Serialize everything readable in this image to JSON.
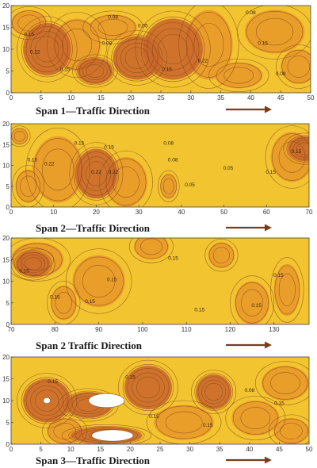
{
  "figure": {
    "colors": {
      "background_fill": "#f2c430",
      "mid_fill": "#e99a2a",
      "dark_fill": "#c9652c",
      "contour_line": "#8a4a1c",
      "axis": "#444444",
      "arrow": "#7a3d1a",
      "void": "#ffffff"
    }
  },
  "chart_data": [
    {
      "type": "heatmap",
      "name": "span-1",
      "caption": "Span 1—Traffic Direction",
      "x_ticks": [
        "0",
        "5",
        "10",
        "15",
        "20",
        "25",
        "30",
        "35",
        "40",
        "45",
        "50"
      ],
      "y_ticks": [
        "0",
        "5",
        "10",
        "15",
        "20"
      ],
      "xlim": [
        0,
        50
      ],
      "ylim": [
        0,
        20
      ],
      "contour_labels": [
        {
          "text": "0.15",
          "x": 3,
          "y": 13
        },
        {
          "text": "0.08",
          "x": 17,
          "y": 17
        },
        {
          "text": "0.05",
          "x": 22,
          "y": 15
        },
        {
          "text": "0.22",
          "x": 4,
          "y": 9
        },
        {
          "text": "0.08",
          "x": 16,
          "y": 11
        },
        {
          "text": "0.15",
          "x": 9,
          "y": 5
        },
        {
          "text": "0.15",
          "x": 26,
          "y": 5
        },
        {
          "text": "0.22",
          "x": 32,
          "y": 7
        },
        {
          "text": "0.15",
          "x": 42,
          "y": 11
        },
        {
          "text": "0.08",
          "x": 45,
          "y": 4
        },
        {
          "text": "0.08",
          "x": 40,
          "y": 18
        }
      ],
      "blobs": [
        {
          "level": 2,
          "cx": 6,
          "cy": 10,
          "rx": 4,
          "ry": 6
        },
        {
          "level": 2,
          "cx": 21,
          "cy": 8,
          "rx": 4,
          "ry": 5
        },
        {
          "level": 2,
          "cx": 27,
          "cy": 10,
          "rx": 5,
          "ry": 7
        },
        {
          "level": 2,
          "cx": 14,
          "cy": 5,
          "rx": 3,
          "ry": 3
        },
        {
          "level": 1,
          "cx": 3,
          "cy": 16,
          "rx": 3,
          "ry": 3
        },
        {
          "level": 1,
          "cx": 11,
          "cy": 11,
          "rx": 4,
          "ry": 6
        },
        {
          "level": 1,
          "cx": 33,
          "cy": 11,
          "rx": 4,
          "ry": 8
        },
        {
          "level": 1,
          "cx": 44,
          "cy": 14,
          "rx": 5,
          "ry": 5
        },
        {
          "level": 1,
          "cx": 48,
          "cy": 6,
          "rx": 3,
          "ry": 4
        },
        {
          "level": 1,
          "cx": 38,
          "cy": 4,
          "rx": 4,
          "ry": 3
        },
        {
          "level": 1,
          "cx": 17,
          "cy": 15,
          "rx": 4,
          "ry": 3
        }
      ]
    },
    {
      "type": "heatmap",
      "name": "span-2a",
      "caption": "Span 2—Traffic Direction",
      "x_ticks": [
        "0",
        "10",
        "20",
        "30",
        "40",
        "50",
        "60",
        "70"
      ],
      "y_ticks": [
        "0",
        "5",
        "10",
        "15",
        "20"
      ],
      "xlim": [
        0,
        70
      ],
      "ylim": [
        0,
        20
      ],
      "contour_labels": [
        {
          "text": "0.15",
          "x": 16,
          "y": 15
        },
        {
          "text": "0.15",
          "x": 23,
          "y": 14
        },
        {
          "text": "0.22",
          "x": 9,
          "y": 10
        },
        {
          "text": "0.22",
          "x": 20,
          "y": 8
        },
        {
          "text": "0.22",
          "x": 24,
          "y": 8
        },
        {
          "text": "0.15",
          "x": 5,
          "y": 11
        },
        {
          "text": "0.08",
          "x": 37,
          "y": 15
        },
        {
          "text": "0.08",
          "x": 38,
          "y": 11
        },
        {
          "text": "0.05",
          "x": 51,
          "y": 9
        },
        {
          "text": "0.05",
          "x": 42,
          "y": 5
        },
        {
          "text": "0.15",
          "x": 61,
          "y": 8
        },
        {
          "text": "0.15",
          "x": 67,
          "y": 13
        }
      ],
      "blobs": [
        {
          "level": 1,
          "cx": 11,
          "cy": 9,
          "rx": 6,
          "ry": 8
        },
        {
          "level": 1,
          "cx": 4,
          "cy": 5,
          "rx": 3,
          "ry": 4
        },
        {
          "level": 2,
          "cx": 20,
          "cy": 8,
          "rx": 5,
          "ry": 6
        },
        {
          "level": 1,
          "cx": 27,
          "cy": 6,
          "rx": 5,
          "ry": 6
        },
        {
          "level": 1,
          "cx": 37,
          "cy": 5,
          "rx": 2,
          "ry": 3
        },
        {
          "level": 2,
          "cx": 69,
          "cy": 14,
          "rx": 4,
          "ry": 3
        },
        {
          "level": 1,
          "cx": 66,
          "cy": 12,
          "rx": 5,
          "ry": 6
        },
        {
          "level": 1,
          "cx": 2,
          "cy": 17,
          "rx": 2,
          "ry": 2
        }
      ]
    },
    {
      "type": "heatmap",
      "name": "span-2b",
      "caption": "Span 2    Traffic Direction",
      "x_ticks": [
        "70",
        "80",
        "90",
        "100",
        "110",
        "120",
        "130"
      ],
      "y_ticks": [
        "0",
        "5",
        "10",
        "15",
        "20"
      ],
      "xlim": [
        70,
        138
      ],
      "ylim": [
        0,
        20
      ],
      "contour_labels": [
        {
          "text": "0.15",
          "x": 73,
          "y": 12
        },
        {
          "text": "0.15",
          "x": 80,
          "y": 6
        },
        {
          "text": "0.15",
          "x": 93,
          "y": 10
        },
        {
          "text": "0.15",
          "x": 88,
          "y": 5
        },
        {
          "text": "0.15",
          "x": 107,
          "y": 15
        },
        {
          "text": "0.15",
          "x": 113,
          "y": 3
        },
        {
          "text": "0.15",
          "x": 126,
          "y": 4
        },
        {
          "text": "0.15",
          "x": 131,
          "y": 11
        }
      ],
      "blobs": [
        {
          "level": 2,
          "cx": 75,
          "cy": 14,
          "rx": 4,
          "ry": 3
        },
        {
          "level": 1,
          "cx": 76,
          "cy": 15,
          "rx": 6,
          "ry": 4
        },
        {
          "level": 1,
          "cx": 90,
          "cy": 10,
          "rx": 6,
          "ry": 6
        },
        {
          "level": 1,
          "cx": 82,
          "cy": 5,
          "rx": 3,
          "ry": 4
        },
        {
          "level": 1,
          "cx": 102,
          "cy": 18,
          "rx": 4,
          "ry": 3
        },
        {
          "level": 1,
          "cx": 125,
          "cy": 5,
          "rx": 4,
          "ry": 5
        },
        {
          "level": 1,
          "cx": 133,
          "cy": 8,
          "rx": 3,
          "ry": 6
        },
        {
          "level": 1,
          "cx": 118,
          "cy": 16,
          "rx": 3,
          "ry": 3
        }
      ]
    },
    {
      "type": "heatmap",
      "name": "span-3",
      "caption": "Span 3—Traffic Direction",
      "x_ticks": [
        "0",
        "5",
        "10",
        "15",
        "20",
        "25",
        "30",
        "35",
        "40",
        "45",
        "50"
      ],
      "y_ticks": [
        "0",
        "5",
        "10",
        "15",
        "20"
      ],
      "xlim": [
        0,
        50
      ],
      "ylim": [
        0,
        20
      ],
      "contour_labels": [
        {
          "text": "0.15",
          "x": 7,
          "y": 14
        },
        {
          "text": "0.15",
          "x": 20,
          "y": 15
        },
        {
          "text": "0.15",
          "x": 24,
          "y": 6
        },
        {
          "text": "0.08",
          "x": 40,
          "y": 12
        },
        {
          "text": "0.15",
          "x": 45,
          "y": 9
        },
        {
          "text": "0.15",
          "x": 33,
          "y": 4
        }
      ],
      "blobs": [
        {
          "level": 2,
          "cx": 6,
          "cy": 10,
          "rx": 4,
          "ry": 5
        },
        {
          "level": 2,
          "cx": 13,
          "cy": 9,
          "rx": 4,
          "ry": 3
        },
        {
          "level": 2,
          "cx": 23,
          "cy": 13,
          "rx": 4,
          "ry": 5
        },
        {
          "level": 2,
          "cx": 34,
          "cy": 12,
          "rx": 3,
          "ry": 4
        },
        {
          "level": 2,
          "cx": 16,
          "cy": 2,
          "rx": 6,
          "ry": 2
        },
        {
          "level": 1,
          "cx": 29,
          "cy": 5,
          "rx": 5,
          "ry": 4
        },
        {
          "level": 1,
          "cx": 41,
          "cy": 6,
          "rx": 4,
          "ry": 4
        },
        {
          "level": 1,
          "cx": 46,
          "cy": 14,
          "rx": 4,
          "ry": 4
        },
        {
          "level": 1,
          "cx": 9,
          "cy": 3,
          "rx": 3,
          "ry": 3
        },
        {
          "level": 1,
          "cx": 47,
          "cy": 3,
          "rx": 3,
          "ry": 3
        }
      ],
      "voids": [
        {
          "cx": 16,
          "cy": 10,
          "rx": 3,
          "ry": 1.6
        },
        {
          "cx": 17,
          "cy": 2,
          "rx": 3.5,
          "ry": 1.3
        },
        {
          "cx": 6,
          "cy": 10,
          "rx": 0.6,
          "ry": 0.7
        }
      ]
    }
  ]
}
